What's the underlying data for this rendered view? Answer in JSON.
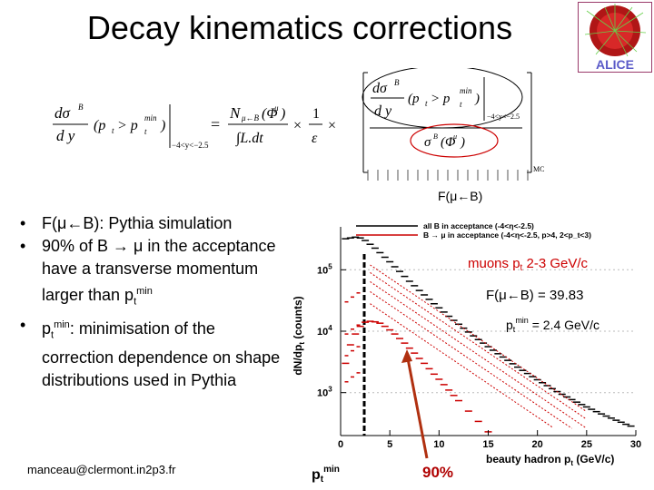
{
  "slide": {
    "title": "Decay kinematics corrections",
    "f_label": "F(μ←B)",
    "bullets": [
      {
        "text": "F(μ←B): Pythia simulation"
      },
      {
        "text": "90% of B → μ in the acceptance have a transverse momentum larger than p",
        "sub": "t",
        "sup": "min"
      },
      {
        "pre": "p",
        "sub": "t",
        "sup": "min",
        "text": ": minimisation of the correction dependence on shape distributions used in Pythia"
      }
    ],
    "email": "manceau@clermont.in2p3.fr",
    "logo_text": "ALICE"
  },
  "formula": {
    "dsigma": "dσ",
    "superB": "B",
    "dy": "d y",
    "pt_cond": "(p",
    "pt_sub": "t",
    "pt_gt": " > p",
    "min": "min",
    "paren_close": ")",
    "range": "−4<y<−2.5",
    "equals": "=",
    "numerator": "N",
    "num_sub": "μ←B",
    "num_phi": "(Φ",
    "phi_sup": "μ",
    "times": "×",
    "one": "1",
    "epsilon": "ε",
    "Ldt": "∫L.dt",
    "sigma_phi": "σ",
    "sigma_sup": "B",
    "phi_mu": "(Φ",
    "mc": "MC"
  },
  "chart_data": {
    "type": "histogram",
    "xlabel": "beauty hadron p",
    "xlabel_sub": "t",
    "xlabel_unit": "(GeV/c)",
    "ylabel": "dN/dp",
    "ylabel_sub": "t",
    "ylabel_unit": "(counts)",
    "x_ticks": [
      "0",
      "5",
      "10",
      "15",
      "20",
      "25",
      "30"
    ],
    "y_ticks": [
      {
        "base": "10",
        "exp": "5",
        "value": 100000
      },
      {
        "base": "10",
        "exp": "4",
        "value": 10000
      },
      {
        "base": "10",
        "exp": "3",
        "value": 1000
      }
    ],
    "xlim": [
      0,
      30
    ],
    "log_y": true,
    "legend": [
      {
        "name": "all B in acceptance (-4<η<-2.5)",
        "color": "#000000"
      },
      {
        "name": "B → μ in acceptance (-4<η<-2.5, p>4, 2<p_t<3)",
        "color": "#cc0000"
      }
    ],
    "series": [
      {
        "name": "all B in acceptance",
        "color": "#000000",
        "x": [
          0.5,
          1,
          1.5,
          2,
          2.5,
          3,
          3.5,
          4,
          4.5,
          5,
          5.5,
          6,
          6.5,
          7,
          7.5,
          8,
          8.5,
          9,
          9.5,
          10,
          10.5,
          11,
          11.5,
          12,
          12.5,
          13,
          13.5,
          14,
          14.5,
          15,
          15.5,
          16,
          16.5,
          17,
          17.5,
          18,
          18.5,
          19,
          19.5,
          20,
          20.5,
          21,
          21.5,
          22,
          22.5,
          23,
          23.5,
          24,
          24.5,
          25,
          25.5,
          26,
          26.5,
          27,
          27.5,
          28,
          28.5,
          29,
          29.5
        ],
        "y": [
          320000,
          330000,
          340000,
          330000,
          300000,
          260000,
          225000,
          190000,
          160000,
          135000,
          112000,
          94000,
          78000,
          65000,
          55000,
          46000,
          39000,
          33000,
          28000,
          24000,
          20500,
          17500,
          15000,
          13000,
          11200,
          9700,
          8400,
          7300,
          6400,
          5600,
          4900,
          4300,
          3800,
          3350,
          2950,
          2600,
          2300,
          2050,
          1820,
          1620,
          1450,
          1300,
          1160,
          1040,
          940,
          850,
          770,
          700,
          640,
          585,
          535,
          490,
          450,
          415,
          385,
          355,
          330,
          305,
          285
        ]
      },
      {
        "name": "B → μ in acceptance",
        "color": "#cc0000",
        "x": [
          0.5,
          1,
          1.5,
          2,
          2.5,
          3,
          3.5,
          4,
          4.5,
          5,
          5.5,
          6,
          6.5,
          7,
          7.5,
          8,
          8.5,
          9,
          9.5,
          10,
          10.5,
          11,
          11.5,
          12,
          13,
          14,
          15,
          16,
          17,
          18,
          19,
          20
        ],
        "y": [
          3000,
          6000,
          9000,
          12000,
          14000,
          14500,
          14200,
          13500,
          12000,
          10500,
          9000,
          7600,
          6400,
          5300,
          4400,
          3600,
          3000,
          2450,
          2000,
          1650,
          1350,
          1100,
          900,
          740,
          500,
          340,
          230,
          160,
          110,
          76,
          52,
          36
        ]
      }
    ],
    "ptmin_x": 2.4,
    "annotations": {
      "muons": "muons p",
      "muons_sub": "t",
      "muons_range": " 2-3 GeV/c",
      "f_value": "F(μ←B) = 39.83",
      "ptmin_pre": "p",
      "ptmin_sub": "t",
      "ptmin_sup": "min",
      "ptmin_value": " = 2.4 GeV/c",
      "ptmin_label": "p",
      "ptmin_label_sub": "t",
      "ptmin_label_sup": "min",
      "percent": "90%"
    },
    "colors": {
      "arrow": "#b03010",
      "percent": "#b00000",
      "annot_red": "#cc0000"
    }
  }
}
